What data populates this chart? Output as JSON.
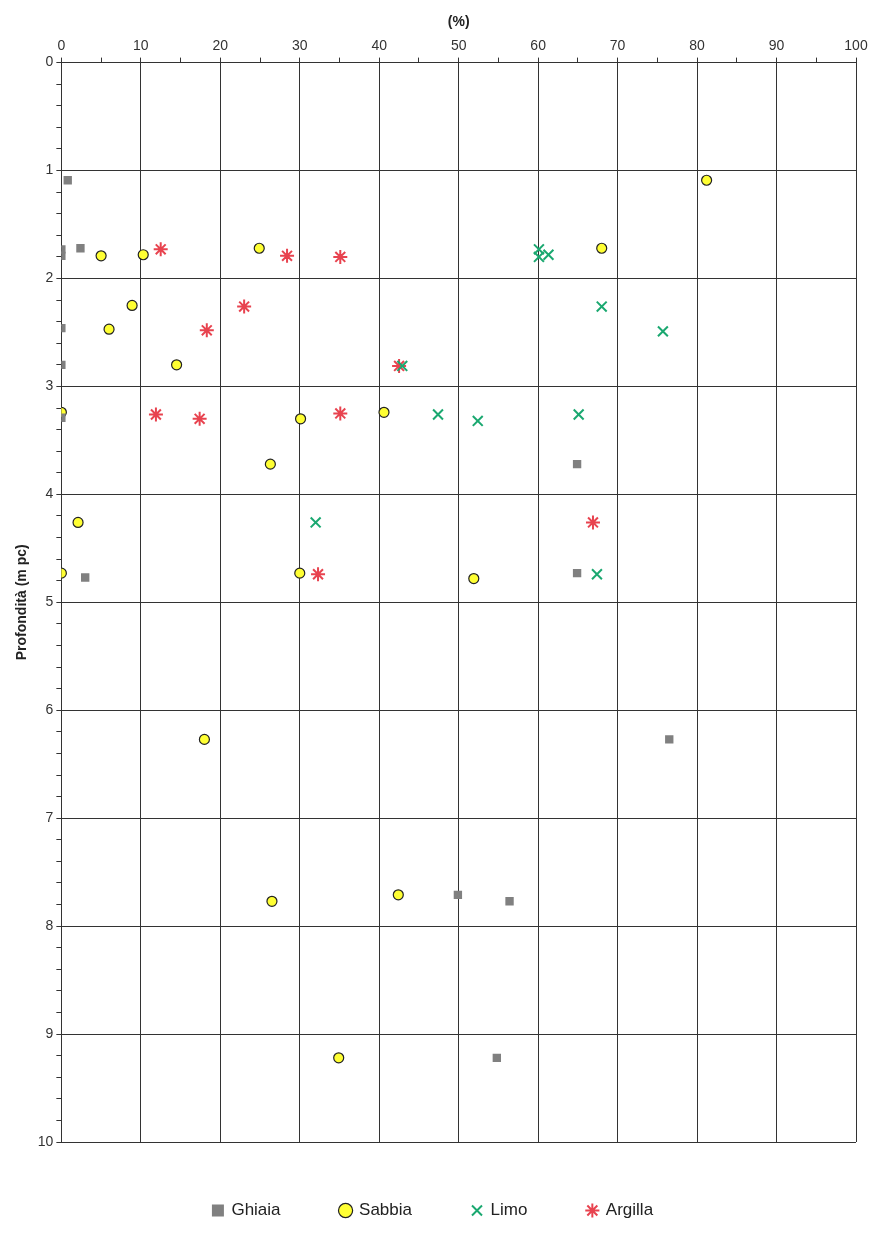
{
  "chart_data": {
    "type": "scatter",
    "xlabel": "(%)",
    "ylabel": "Profondità (m pc)",
    "xlim": [
      0,
      100
    ],
    "ylim": [
      10,
      0
    ],
    "xticks": [
      0,
      {
        "value": 5,
        "label": null
      },
      10,
      {
        "value": 15,
        "label": null
      },
      20,
      {
        "value": 25,
        "label": null
      },
      30,
      {
        "value": 35,
        "label": null
      },
      40,
      {
        "value": 45,
        "label": null
      },
      50,
      {
        "value": 55,
        "label": null
      },
      60,
      {
        "value": 65,
        "label": null
      },
      70,
      {
        "value": 75,
        "label": null
      },
      80,
      {
        "value": 85,
        "label": null
      },
      90,
      {
        "value": 95,
        "label": null
      },
      100
    ],
    "yticks": [
      0,
      {
        "value": 0.2,
        "label": null
      },
      {
        "value": 0.4,
        "label": null
      },
      {
        "value": 0.6,
        "label": null
      },
      {
        "value": 0.8,
        "label": null
      },
      1,
      {
        "value": 1.2,
        "label": null
      },
      {
        "value": 1.4,
        "label": null
      },
      {
        "value": 1.6,
        "label": null
      },
      {
        "value": 1.8,
        "label": null
      },
      2,
      {
        "value": 2.2,
        "label": null
      },
      {
        "value": 2.4,
        "label": null
      },
      {
        "value": 2.6,
        "label": null
      },
      {
        "value": 2.8,
        "label": null
      },
      3,
      {
        "value": 3.2,
        "label": null
      },
      {
        "value": 3.4,
        "label": null
      },
      {
        "value": 3.6,
        "label": null
      },
      {
        "value": 3.8,
        "label": null
      },
      4,
      {
        "value": 4.2,
        "label": null
      },
      {
        "value": 4.4,
        "label": null
      },
      {
        "value": 4.6,
        "label": null
      },
      {
        "value": 4.8,
        "label": null
      },
      5,
      {
        "value": 5.2,
        "label": null
      },
      {
        "value": 5.4,
        "label": null
      },
      {
        "value": 5.6,
        "label": null
      },
      {
        "value": 5.8,
        "label": null
      },
      6,
      {
        "value": 6.2,
        "label": null
      },
      {
        "value": 6.4,
        "label": null
      },
      {
        "value": 6.6,
        "label": null
      },
      {
        "value": 6.8,
        "label": null
      },
      7,
      {
        "value": 7.2,
        "label": null
      },
      {
        "value": 7.4,
        "label": null
      },
      {
        "value": 7.6,
        "label": null
      },
      {
        "value": 7.8,
        "label": null
      },
      8,
      {
        "value": 8.2,
        "label": null
      },
      {
        "value": 8.4,
        "label": null
      },
      {
        "value": 8.6,
        "label": null
      },
      {
        "value": 8.8,
        "label": null
      },
      9,
      {
        "value": 9.2,
        "label": null
      },
      {
        "value": 9.4,
        "label": null
      },
      {
        "value": 9.6,
        "label": null
      },
      {
        "value": 9.8,
        "label": null
      },
      10
    ],
    "grid": true,
    "legend": "bottom",
    "series": [
      {
        "name": "Ghiaia",
        "color": "#808080",
        "marker": "square",
        "x": [
          0.8,
          0,
          0,
          2.4,
          0,
          0,
          0,
          64.9,
          3.0,
          64.9,
          76.5,
          49.9,
          56.4,
          54.8
        ],
        "values": [
          1.09,
          1.73,
          1.79,
          1.72,
          2.46,
          2.8,
          3.29,
          3.72,
          4.77,
          4.73,
          6.27,
          7.71,
          7.77,
          9.22
        ]
      },
      {
        "name": "Sabbia",
        "color": "#ffff33",
        "marker": "circle",
        "x": [
          81.2,
          5.0,
          10.3,
          24.9,
          68.0,
          8.9,
          6.0,
          14.5,
          0,
          30.1,
          40.6,
          26.3,
          2.1,
          0,
          30.0,
          51.9,
          18.0,
          26.5,
          42.4,
          34.9
        ],
        "values": [
          1.09,
          1.79,
          1.78,
          1.72,
          1.72,
          2.25,
          2.47,
          2.8,
          3.24,
          3.3,
          3.24,
          3.72,
          4.26,
          4.73,
          4.73,
          4.78,
          6.27,
          7.77,
          7.71,
          9.22
        ]
      },
      {
        "name": "Limo",
        "color": "#1aa870",
        "marker": "cross",
        "x": [
          60.1,
          60.1,
          61.3,
          68.0,
          75.7,
          42.9,
          47.4,
          52.4,
          65.1,
          32.0,
          67.4
        ],
        "values": [
          1.73,
          1.8,
          1.78,
          2.26,
          2.49,
          2.81,
          3.26,
          3.32,
          3.26,
          4.26,
          4.74
        ]
      },
      {
        "name": "Argilla",
        "color": "#e8434f",
        "x": [
          12.5,
          28.4,
          35.1,
          23.0,
          18.3,
          42.5,
          11.9,
          17.4,
          35.1,
          66.9,
          32.3
        ],
        "values": [
          1.73,
          1.79,
          1.8,
          2.26,
          2.48,
          2.81,
          3.26,
          3.3,
          3.25,
          4.26,
          4.74
        ]
      }
    ]
  }
}
